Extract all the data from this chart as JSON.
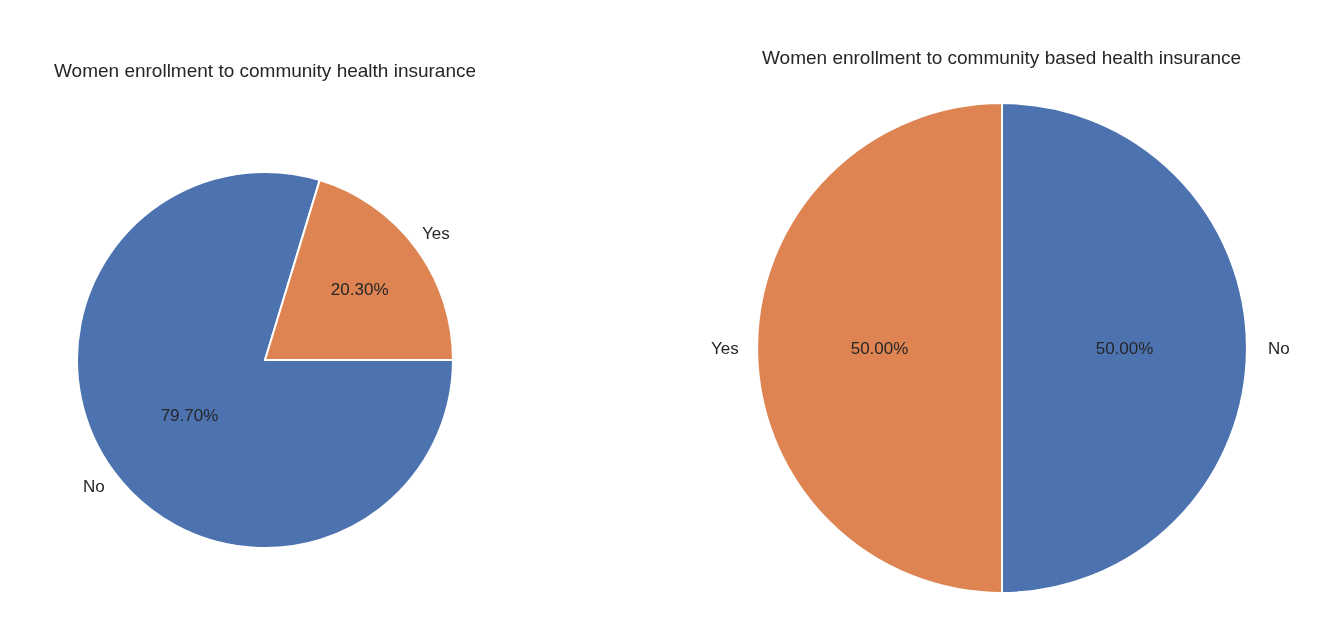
{
  "chart_data": [
    {
      "type": "pie",
      "title": "Women enrollment to community health insurance",
      "categories": [
        "No",
        "Yes"
      ],
      "values": [
        79.7,
        20.3
      ],
      "colors": [
        "#4c72b0",
        "#dd8452"
      ],
      "value_labels": [
        "79.70%",
        "20.30%"
      ],
      "legend": false
    },
    {
      "type": "pie",
      "title": "Women enrollment to community based health insurance",
      "categories": [
        "No",
        "Yes"
      ],
      "values": [
        50,
        50
      ],
      "colors": [
        "#4c72b0",
        "#dd8452"
      ],
      "value_labels": [
        "50.00%",
        "50.00%"
      ],
      "legend": false
    }
  ]
}
